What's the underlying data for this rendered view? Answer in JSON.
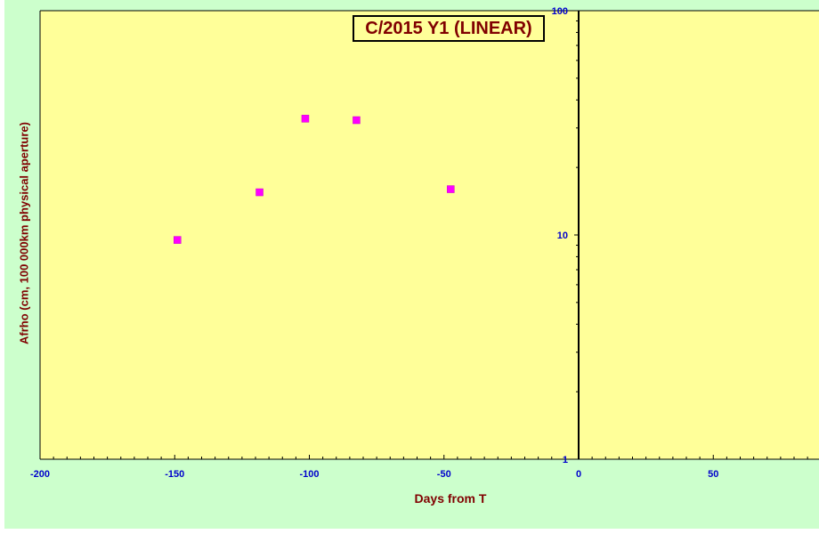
{
  "chart_data": {
    "type": "scatter",
    "title": "C/2015 Y1 (LINEAR)",
    "xlabel": "Days from T",
    "ylabel": "Afrho (cm, 100 000km physical aperture)",
    "xlim": [
      -200,
      90
    ],
    "ylim": [
      1,
      100
    ],
    "yscale": "log",
    "x_ticks": [
      -200,
      -150,
      -100,
      -50,
      0,
      50
    ],
    "y_ticks": [
      1,
      10,
      100
    ],
    "grid": false,
    "legend": "none",
    "series": [
      {
        "color": "#ff00ff",
        "marker": "square",
        "points": [
          {
            "x": -149,
            "y": 9.5
          },
          {
            "x": -118.5,
            "y": 15.5
          },
          {
            "x": -101.5,
            "y": 33
          },
          {
            "x": -82.5,
            "y": 32.5
          },
          {
            "x": -47.5,
            "y": 16
          }
        ]
      }
    ]
  },
  "colors": {
    "outer_background": "#ccffcc",
    "plot_background": "#ffff99",
    "label_color": "#800000",
    "tick_label_color": "#0000cc",
    "marker_color": "#ff00ff"
  }
}
